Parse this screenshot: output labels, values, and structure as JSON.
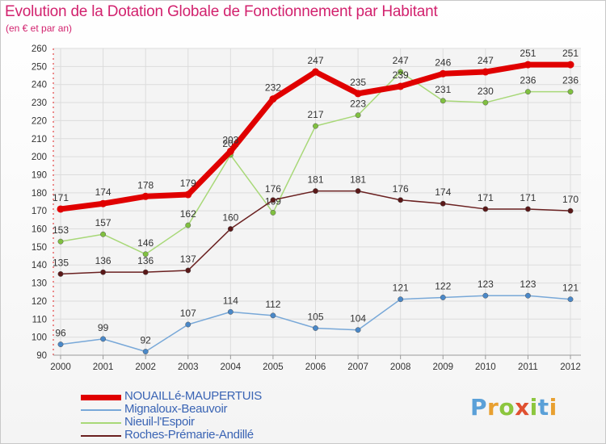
{
  "title": "Evolution de la Dotation Globale de Fonctionnement par Habitant",
  "subtitle": "(en € et par an)",
  "brand": {
    "letters": [
      "P",
      "r",
      "o",
      "x",
      "i",
      "t",
      "i"
    ],
    "colors": [
      "#5aa0d8",
      "#e8a030",
      "#8cc63e",
      "#e05030",
      "#8cc63e",
      "#5aa0d8",
      "#e8a030"
    ]
  },
  "chart_data": {
    "type": "line",
    "x": [
      "2000",
      "2001",
      "2002",
      "2003",
      "2004",
      "2005",
      "2006",
      "2007",
      "2008",
      "2009",
      "2010",
      "2011",
      "2012"
    ],
    "ylim": [
      90,
      260
    ],
    "yticks": [
      90,
      100,
      110,
      120,
      130,
      140,
      150,
      160,
      170,
      180,
      190,
      200,
      210,
      220,
      230,
      240,
      250,
      260
    ],
    "grid": true,
    "legend_position": "bottom-left",
    "series": [
      {
        "name": "NOUAILLé-MAUPERTUIS",
        "color": "#e00000",
        "marker": "#e00000",
        "width": 7,
        "values": [
          171,
          174,
          178,
          179,
          203,
          232,
          247,
          235,
          239,
          246,
          247,
          251,
          251
        ],
        "labels": [
          "171",
          "174",
          "178",
          "179",
          "203",
          "232",
          "247",
          "235",
          "239",
          "246",
          "247",
          "251",
          "251"
        ]
      },
      {
        "name": "Mignaloux-Beauvoir",
        "color": "#78a8d8",
        "marker": "#4a88c8",
        "width": 1.5,
        "values": [
          96,
          99,
          92,
          107,
          114,
          112,
          105,
          104,
          121,
          122,
          123,
          123,
          121
        ],
        "labels": [
          "96",
          "99",
          "92",
          "107",
          "114",
          "112",
          "105",
          "104",
          "121",
          "122",
          "123",
          "123",
          "121"
        ]
      },
      {
        "name": "Nieuil-l'Espoir",
        "color": "#a8d878",
        "marker": "#80c040",
        "width": 1.5,
        "values": [
          153,
          157,
          146,
          162,
          201,
          169,
          217,
          223,
          247,
          231,
          230,
          236,
          236
        ],
        "labels": [
          "153",
          "157",
          "146",
          "162",
          "201",
          "169",
          "217",
          "223",
          "247",
          "231",
          "230",
          "236",
          "236"
        ]
      },
      {
        "name": "Roches-Prémarie-Andillé",
        "color": "#6a2020",
        "marker": "#5a1818",
        "width": 1.5,
        "values": [
          135,
          136,
          136,
          137,
          160,
          176,
          181,
          181,
          176,
          174,
          171,
          171,
          170
        ],
        "labels": [
          "135",
          "136",
          "136",
          "137",
          "160",
          "176",
          "181",
          "181",
          "176",
          "174",
          "171",
          "171",
          "170"
        ]
      }
    ]
  }
}
